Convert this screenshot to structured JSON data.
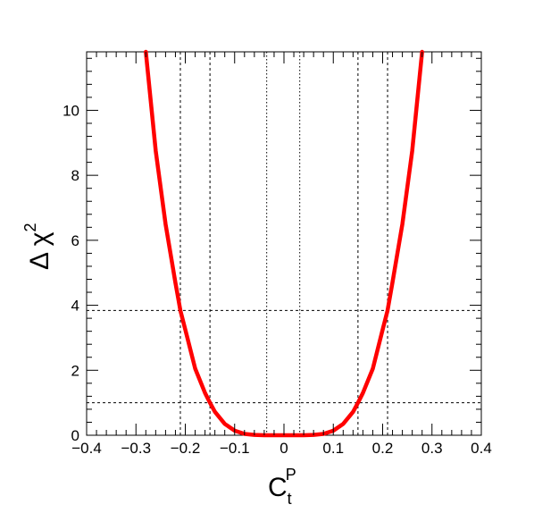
{
  "chart_data": {
    "type": "line",
    "title": "",
    "xlabel": {
      "main": "C",
      "sub": "t",
      "sup": "P"
    },
    "ylabel": {
      "main": "Δ χ",
      "sup": "2"
    },
    "xlim": [
      -0.4,
      0.4
    ],
    "ylim": [
      0,
      11.8
    ],
    "xticks": [
      -0.4,
      -0.3,
      -0.2,
      -0.1,
      0,
      0.1,
      0.2,
      0.3,
      0.4
    ],
    "xtick_labels": [
      "−0.4",
      "−0.3",
      "−0.2",
      "−0.1",
      "0",
      "0.1",
      "0.2",
      "0.3",
      "0.4"
    ],
    "yticks": [
      0,
      2,
      4,
      6,
      8,
      10
    ],
    "ytick_labels": [
      "0",
      "2",
      "4",
      "6",
      "8",
      "10"
    ],
    "grid": false,
    "curve_color": "#ff0000",
    "series": [
      {
        "x": [
          -0.28,
          -0.26,
          -0.24,
          -0.22,
          -0.21,
          -0.2,
          -0.18,
          -0.16,
          -0.15,
          -0.14,
          -0.12,
          -0.1,
          -0.08,
          -0.06,
          -0.04,
          -0.02,
          0,
          0.02,
          0.04,
          0.06,
          0.08,
          0.1,
          0.12,
          0.14,
          0.15,
          0.16,
          0.18,
          0.2,
          0.21,
          0.22,
          0.24,
          0.26,
          0.28
        ],
        "y": [
          11.8,
          8.75,
          6.5,
          4.7,
          3.84,
          3.25,
          2.05,
          1.3,
          1.0,
          0.72,
          0.35,
          0.14,
          0.04,
          0.01,
          0,
          0,
          0,
          0,
          0,
          0.01,
          0.04,
          0.14,
          0.35,
          0.72,
          1.0,
          1.3,
          2.05,
          3.25,
          3.84,
          4.7,
          6.5,
          8.75,
          11.8
        ]
      }
    ],
    "reference_lines": {
      "horizontal": [
        1.0,
        3.84
      ],
      "vertical": [
        -0.21,
        -0.15,
        -0.035,
        0.032,
        0.15,
        0.21
      ]
    }
  }
}
